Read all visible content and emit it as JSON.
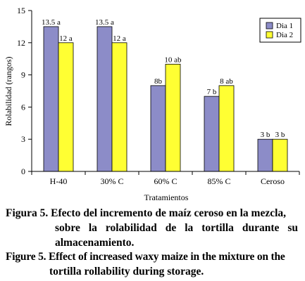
{
  "chart_data": {
    "type": "bar",
    "categories": [
      "H-40",
      "30% C",
      "60% C",
      "85% C",
      "Ceroso"
    ],
    "series": [
      {
        "name": "Dia 1",
        "color": "#8c8cc8",
        "values": [
          13.5,
          13.5,
          8,
          7,
          3
        ],
        "labels": [
          "13.5 a",
          "13.5 a",
          "8b",
          "7 b",
          "3 b"
        ]
      },
      {
        "name": "Dia 2",
        "color": "#ffff33",
        "values": [
          12,
          12,
          10,
          8,
          3
        ],
        "labels": [
          "12 a",
          "12 a",
          "10 ab",
          "8 ab",
          "3 b"
        ]
      }
    ],
    "ylabel": "Rolabilidad (rangos)",
    "xlabel": "Tratamientos",
    "ylim": [
      0,
      15
    ],
    "yticks": [
      0,
      3,
      6,
      9,
      12,
      15
    ],
    "legend_position": "top-right",
    "grid": false
  },
  "caption": {
    "es_line1": "Figura 5. Efecto del incremento de maíz ceroso en la mezcla,",
    "es_line2": "sobre la rolabilidad de la tortilla durante su",
    "es_line3": "almacenamiento.",
    "en_line1": "Figure 5. Effect of increased waxy maize in the mixture on the",
    "en_line2": "tortilla rollability during storage."
  }
}
